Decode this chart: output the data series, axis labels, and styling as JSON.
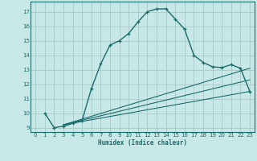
{
  "xlabel": "Humidex (Indice chaleur)",
  "bg_color": "#c8e8e8",
  "grid_color": "#a8cece",
  "line_color": "#1a6b6b",
  "xlim": [
    -0.5,
    23.5
  ],
  "ylim": [
    8.7,
    17.7
  ],
  "yticks": [
    9,
    10,
    11,
    12,
    13,
    14,
    15,
    16,
    17
  ],
  "xticks": [
    0,
    1,
    2,
    3,
    4,
    5,
    6,
    7,
    8,
    9,
    10,
    11,
    12,
    13,
    14,
    15,
    16,
    17,
    18,
    19,
    20,
    21,
    22,
    23
  ],
  "curve1_x": [
    1,
    2,
    3,
    4,
    5,
    6,
    7,
    8,
    9,
    10,
    11,
    12,
    13,
    14,
    15,
    16,
    17,
    18,
    19,
    20,
    21,
    22,
    23
  ],
  "curve1_y": [
    10.0,
    9.0,
    9.1,
    9.3,
    9.5,
    11.7,
    13.4,
    14.7,
    15.0,
    15.5,
    16.3,
    17.0,
    17.2,
    17.2,
    16.5,
    15.8,
    14.0,
    13.5,
    13.2,
    13.15,
    13.35,
    13.1,
    11.5
  ],
  "curve2_x": [
    3,
    23
  ],
  "curve2_y": [
    9.2,
    13.1
  ],
  "curve3_x": [
    3,
    23
  ],
  "curve3_y": [
    9.2,
    11.5
  ],
  "curve4_x": [
    3,
    23
  ],
  "curve4_y": [
    9.2,
    12.3
  ]
}
